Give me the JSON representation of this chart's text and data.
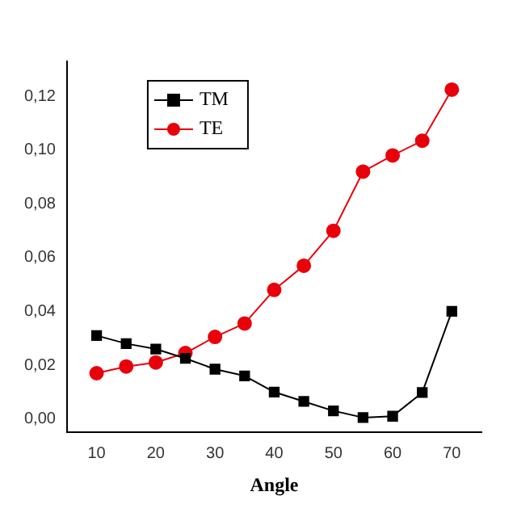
{
  "chart_data": {
    "type": "line",
    "xlabel": "Angle",
    "x": [
      10,
      15,
      20,
      25,
      30,
      35,
      40,
      45,
      50,
      55,
      60,
      65,
      70
    ],
    "series": [
      {
        "name": "TM",
        "color": "#000000",
        "marker": "square",
        "values": [
          0.031,
          0.028,
          0.026,
          0.0225,
          0.0185,
          0.016,
          0.01,
          0.0065,
          0.003,
          0.0005,
          0.001,
          0.0098,
          0.04
        ]
      },
      {
        "name": "TE",
        "color": "#e8000b",
        "marker": "circle",
        "values": [
          0.017,
          0.0195,
          0.021,
          0.0245,
          0.0305,
          0.0355,
          0.048,
          0.057,
          0.07,
          0.092,
          0.098,
          0.1035,
          0.1225
        ]
      }
    ],
    "xlim": [
      5,
      75
    ],
    "xticks": [
      10,
      20,
      30,
      40,
      50,
      60,
      70
    ],
    "ylim": [
      -0.005,
      0.133
    ],
    "yticks": [
      {
        "value": 0,
        "label": "0,00"
      },
      {
        "value": 0.02,
        "label": "0,02"
      },
      {
        "value": 0.04,
        "label": "0,04"
      },
      {
        "value": 0.06,
        "label": "0,06"
      },
      {
        "value": 0.08,
        "label": "0,08"
      },
      {
        "value": 0.1,
        "label": "0,10"
      },
      {
        "value": 0.12,
        "label": "0,12"
      }
    ],
    "grid": false,
    "legend": "top left"
  }
}
